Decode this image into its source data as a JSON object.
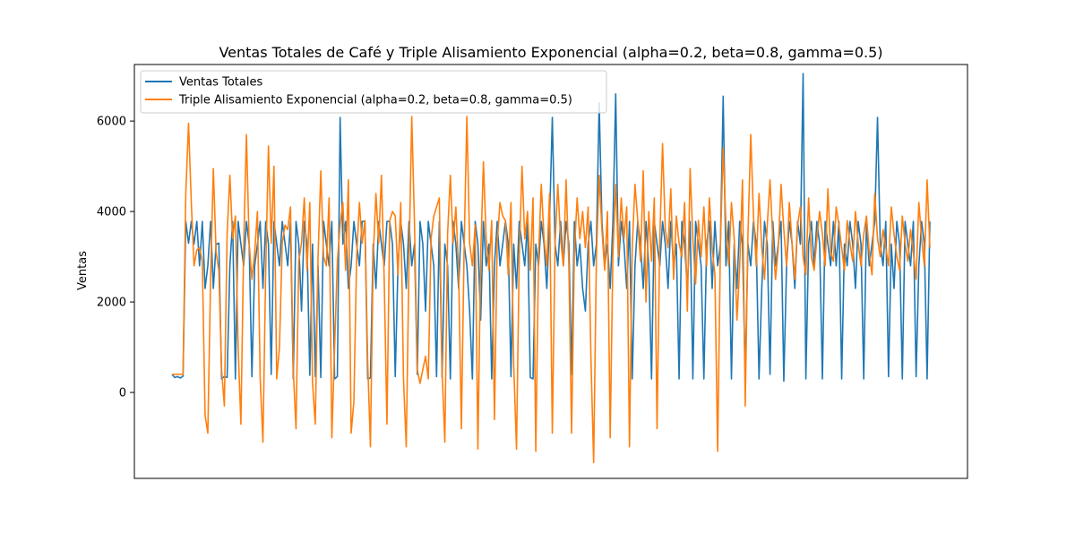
{
  "chart_data": {
    "type": "line",
    "title": "Ventas Totales de Café y Triple Alisamiento Exponencial (alpha=0.2, beta=0.8, gamma=0.5)",
    "xlabel": "",
    "ylabel": "Ventas",
    "ylim": [
      -1900,
      7250
    ],
    "yticks": [
      0,
      2000,
      4000,
      6000
    ],
    "ytick_labels": [
      "0",
      "2000",
      "4000",
      "6000"
    ],
    "x_ticks_shown": false,
    "legend_position": "top-left",
    "grid": false,
    "series": [
      {
        "name": "Ventas Totales",
        "color": "#1f77b4",
        "values": [
          400,
          330,
          350,
          320,
          360,
          3780,
          3300,
          3780,
          3280,
          3780,
          2800,
          3780,
          2300,
          2800,
          3780,
          2300,
          3280,
          3300,
          300,
          350,
          330,
          2800,
          3780,
          300,
          3780,
          3280,
          2800,
          3780,
          3280,
          350,
          2800,
          3280,
          3780,
          2300,
          3780,
          3280,
          400,
          3780,
          3280,
          2800,
          3780,
          3300,
          2800,
          3780,
          300,
          3780,
          3280,
          1800,
          3780,
          3280,
          380,
          3280,
          350,
          2800,
          330,
          3780,
          3280,
          2800,
          3780,
          300,
          350,
          6080,
          3280,
          3780,
          2300,
          2800,
          3780,
          3280,
          2800,
          3780,
          3780,
          300,
          320,
          3280,
          2300,
          3780,
          3280,
          2800,
          3780,
          3780,
          3280,
          350,
          2800,
          3780,
          3280,
          2300,
          3780,
          2800,
          3280,
          400,
          3780,
          3280,
          1800,
          3780,
          3280,
          2800,
          350,
          3780,
          330,
          3280,
          2800,
          300,
          3780,
          3280,
          2300,
          3780,
          3280,
          2800,
          1800,
          300,
          3780,
          3280,
          1600,
          3780,
          2800,
          3280,
          300,
          2800,
          3780,
          2800,
          3280,
          3780,
          3300,
          350,
          3280,
          2300,
          3780,
          3280,
          2800,
          3780,
          330,
          300,
          3280,
          2800,
          3780,
          3280,
          2300,
          3780,
          6080,
          3280,
          2800,
          3780,
          2800,
          3780,
          3280,
          400,
          3780,
          2800,
          3280,
          2300,
          1800,
          3280,
          3780,
          2800,
          3280,
          6400,
          3780,
          2800,
          3280,
          2300,
          3780,
          6600,
          2800,
          3780,
          3280,
          2300,
          3780,
          300,
          2800,
          3780,
          3280,
          2300,
          3780,
          2800,
          300,
          3780,
          3280,
          2800,
          3780,
          3280,
          2300,
          3780,
          2800,
          3280,
          300,
          3780,
          3280,
          2300,
          3780,
          300,
          3780,
          3280,
          2800,
          300,
          3280,
          3780,
          2300,
          3780,
          2800,
          3280,
          6550,
          2800,
          3780,
          300,
          3280,
          2300,
          3780,
          3280,
          350,
          3280,
          2800,
          3780,
          3280,
          300,
          2300,
          3780,
          3280,
          400,
          3780,
          2800,
          3280,
          3780,
          250,
          2800,
          3780,
          3280,
          2300,
          3780,
          3280,
          7050,
          300,
          3280,
          3780,
          2800,
          3780,
          3280,
          300,
          3780,
          3280,
          2800,
          3780,
          2800,
          3780,
          300,
          3280,
          2800,
          3780,
          3280,
          2300,
          3780,
          3280,
          300,
          3780,
          2800,
          3280,
          3780,
          6080,
          3280,
          2800,
          3780,
          350,
          3280,
          2300,
          3780,
          3280,
          300,
          3780,
          3280,
          2800,
          3780,
          350,
          2800,
          3780,
          3280,
          300,
          3780
        ]
      },
      {
        "name": "Triple Alisamiento Exponencial (alpha=0.2, beta=0.8, gamma=0.5)",
        "color": "#ff7f0e",
        "values": [
          400,
          400,
          400,
          400,
          400,
          4400,
          5950,
          4200,
          2800,
          3150,
          3200,
          2900,
          -500,
          -900,
          2500,
          4950,
          3100,
          2700,
          500,
          -300,
          3500,
          4800,
          3400,
          3900,
          1000,
          -700,
          3200,
          5700,
          3300,
          2500,
          3100,
          4000,
          300,
          -1100,
          2700,
          5450,
          3300,
          5000,
          300,
          1000,
          3300,
          3700,
          3600,
          4100,
          500,
          -800,
          2900,
          3300,
          4300,
          2700,
          4200,
          200,
          -700,
          3000,
          4900,
          3000,
          2800,
          4300,
          -1000,
          1000,
          2900,
          3700,
          4200,
          2700,
          4700,
          -900,
          -200,
          3000,
          4200,
          3300,
          3800,
          700,
          -1200,
          3000,
          4400,
          3300,
          4800,
          2500,
          -700,
          3800,
          4000,
          3900,
          2600,
          4200,
          300,
          -1200,
          2900,
          6100,
          3700,
          500,
          200,
          500,
          800,
          300,
          3400,
          3900,
          4100,
          4300,
          500,
          -1100,
          3500,
          4800,
          3300,
          4100,
          2700,
          -800,
          3200,
          6100,
          3300,
          2800,
          3700,
          -1250,
          3000,
          5100,
          3400,
          2700,
          3800,
          -600,
          3300,
          4200,
          3900,
          3800,
          2600,
          4200,
          600,
          -1250,
          3000,
          5000,
          3400,
          4000,
          2700,
          4300,
          -1300,
          3000,
          4600,
          3400,
          2800,
          4400,
          -900,
          3300,
          4600,
          3400,
          2800,
          4700,
          2800,
          -900,
          3100,
          4300,
          3400,
          4000,
          3200,
          4100,
          800,
          -1550,
          3000,
          4800,
          3600,
          2700,
          4000,
          -1000,
          3100,
          4600,
          3000,
          4300,
          3400,
          4100,
          -1200,
          3200,
          4600,
          3800,
          2900,
          4900,
          2000,
          4000,
          2900,
          4300,
          -800,
          3400,
          5500,
          3600,
          3200,
          4500,
          2500,
          3900,
          3300,
          3000,
          4200,
          1800,
          4950,
          3400,
          2400,
          3800,
          3000,
          4100,
          2800,
          4300,
          3200,
          2600,
          -1300,
          3300,
          5400,
          3700,
          2800,
          4200,
          3400,
          1600,
          2800,
          4700,
          -300,
          3500,
          5700,
          3900,
          2800,
          4400,
          3200,
          2500,
          3700,
          4700,
          3400,
          2500,
          3200,
          4600,
          3600,
          2800,
          4200,
          3300,
          2500,
          3700,
          4100,
          3000,
          2600,
          4300,
          3000,
          2700,
          3400,
          4000,
          3500,
          2800,
          4500,
          3100,
          2900,
          4100,
          3700,
          3200,
          2700,
          3800,
          3300,
          2900,
          4000,
          3300,
          2800,
          3500,
          3900,
          3100,
          2600,
          4400,
          3400,
          3000,
          3600,
          3200,
          2800,
          4100,
          3500,
          3000,
          2700,
          3900,
          3300,
          2900,
          3600,
          3100,
          2500,
          4200,
          3400,
          2800,
          4700,
          3200
        ]
      }
    ]
  }
}
